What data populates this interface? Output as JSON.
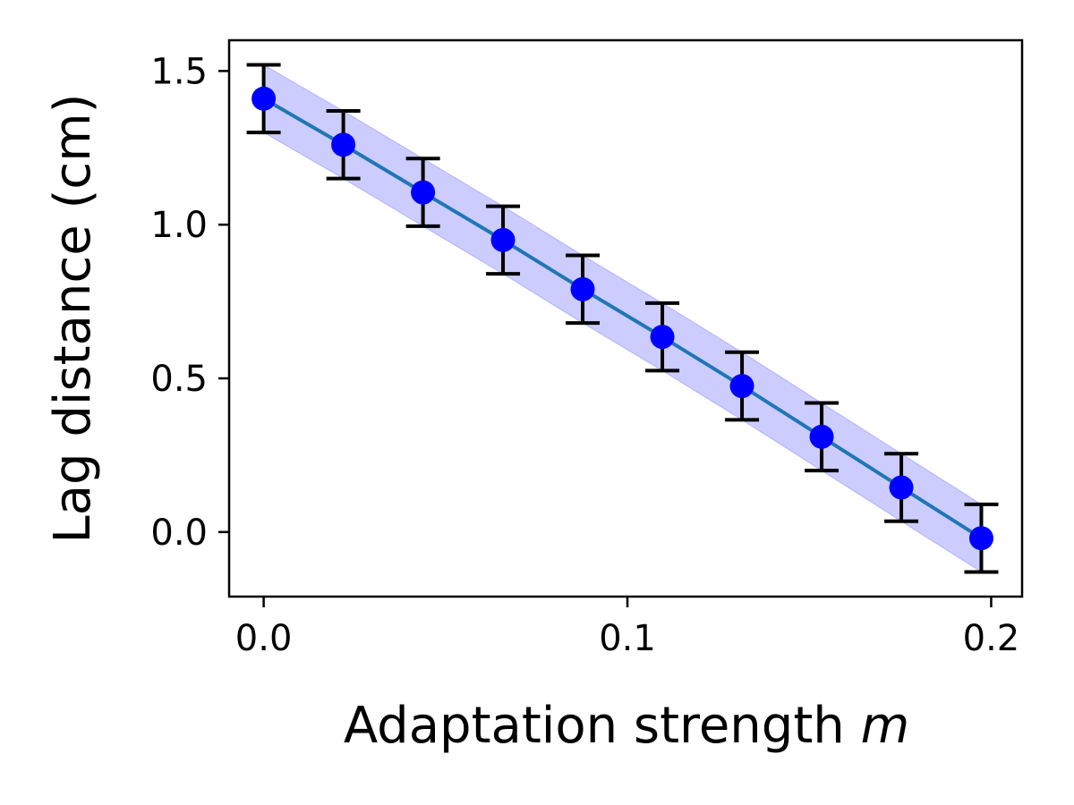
{
  "chart_data": {
    "type": "line",
    "xlabel": "Adaptation strength",
    "xlabel_var": "m",
    "ylabel": "Lag distance (cm)",
    "xlim": [
      -0.0095,
      0.2085
    ],
    "ylim": [
      -0.21,
      1.6
    ],
    "xticks": [
      0.0,
      0.1,
      0.2
    ],
    "xtick_labels": [
      "0.0",
      "0.1",
      "0.2"
    ],
    "yticks": [
      0.0,
      0.5,
      1.0,
      1.5
    ],
    "ytick_labels": [
      "0.0",
      "0.5",
      "1.0",
      "1.5"
    ],
    "grid": false,
    "series": [
      {
        "x": [
          0.0,
          0.0219,
          0.0438,
          0.0658,
          0.0877,
          0.1096,
          0.1315,
          0.1534,
          0.1753,
          0.1973
        ],
        "y": [
          1.41,
          1.26,
          1.105,
          0.95,
          0.79,
          0.635,
          0.475,
          0.31,
          0.145,
          -0.02
        ],
        "yerr": 0.11,
        "band": 0.11,
        "line_color": "#1f77b4",
        "marker_color": "#0000ff",
        "band_color": "#0000ff",
        "errorbar_color": "#000000"
      }
    ]
  }
}
